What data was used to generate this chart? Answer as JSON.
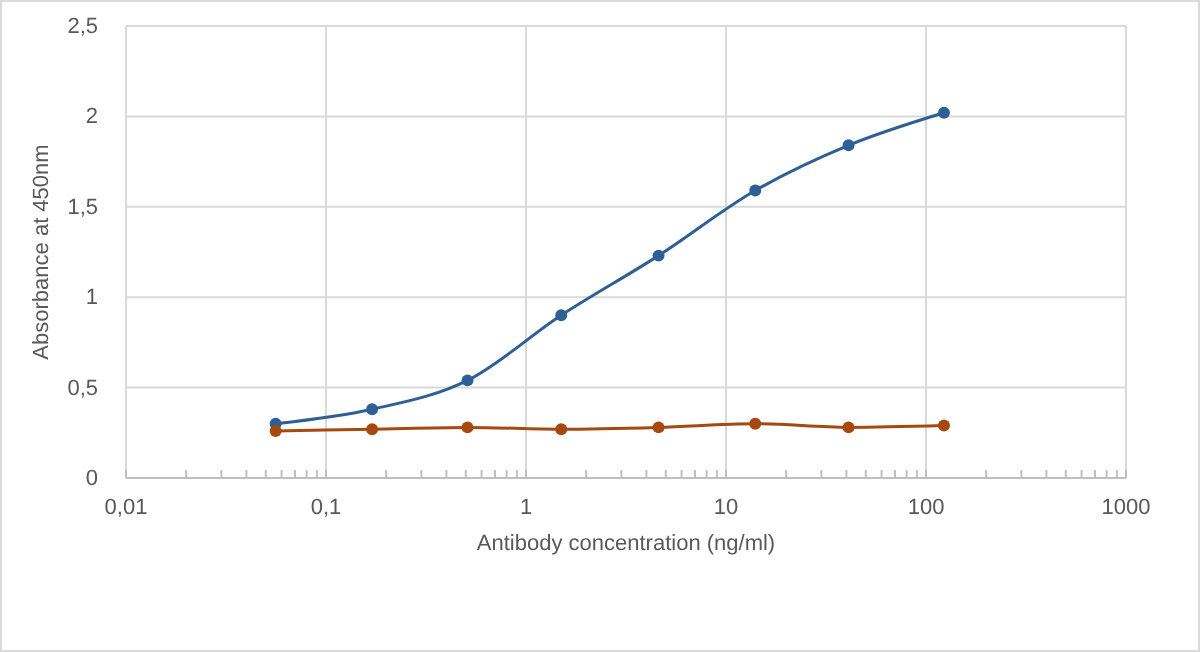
{
  "chart_data": {
    "type": "line",
    "xlabel": "Antibody concentration (ng/ml)",
    "ylabel": "Absorbance at 450nm",
    "log": "x",
    "grid": true,
    "marker": "circle",
    "line_style": "solid",
    "x": [
      0.056,
      0.17,
      0.51,
      1.5,
      4.6,
      14,
      41,
      123
    ],
    "series": [
      {
        "color": "#2e6096",
        "values": [
          0.3,
          0.38,
          0.54,
          0.9,
          1.23,
          1.59,
          1.84,
          2.02
        ]
      },
      {
        "color": "#a5490f",
        "values": [
          0.26,
          0.27,
          0.28,
          0.27,
          0.28,
          0.3,
          0.28,
          0.29
        ]
      }
    ],
    "xlim": [
      0.01,
      1000
    ],
    "xticks": [
      {
        "value": 0.01,
        "label": "0,01"
      },
      {
        "value": 0.02,
        "label": null
      },
      {
        "value": 0.03,
        "label": null
      },
      {
        "value": 0.04,
        "label": null
      },
      {
        "value": 0.05,
        "label": null
      },
      {
        "value": 0.06,
        "label": null
      },
      {
        "value": 0.07,
        "label": null
      },
      {
        "value": 0.08,
        "label": null
      },
      {
        "value": 0.09,
        "label": null
      },
      {
        "value": 0.1,
        "label": "0,1"
      },
      {
        "value": 0.2,
        "label": null
      },
      {
        "value": 0.3,
        "label": null
      },
      {
        "value": 0.4,
        "label": null
      },
      {
        "value": 0.5,
        "label": null
      },
      {
        "value": 0.6,
        "label": null
      },
      {
        "value": 0.7,
        "label": null
      },
      {
        "value": 0.8,
        "label": null
      },
      {
        "value": 0.9,
        "label": null
      },
      1,
      {
        "value": 2,
        "label": null
      },
      {
        "value": 3,
        "label": null
      },
      {
        "value": 4,
        "label": null
      },
      {
        "value": 5,
        "label": null
      },
      {
        "value": 6,
        "label": null
      },
      {
        "value": 7,
        "label": null
      },
      {
        "value": 8,
        "label": null
      },
      {
        "value": 9,
        "label": null
      },
      10,
      {
        "value": 20,
        "label": null
      },
      {
        "value": 30,
        "label": null
      },
      {
        "value": 40,
        "label": null
      },
      {
        "value": 50,
        "label": null
      },
      {
        "value": 60,
        "label": null
      },
      {
        "value": 70,
        "label": null
      },
      {
        "value": 80,
        "label": null
      },
      {
        "value": 90,
        "label": null
      },
      100,
      {
        "value": 200,
        "label": null
      },
      {
        "value": 300,
        "label": null
      },
      {
        "value": 400,
        "label": null
      },
      {
        "value": 500,
        "label": null
      },
      {
        "value": 600,
        "label": null
      },
      {
        "value": 700,
        "label": null
      },
      {
        "value": 800,
        "label": null
      },
      {
        "value": 900,
        "label": null
      },
      1000
    ],
    "ylim": [
      0,
      2.5
    ],
    "yticks": [
      0,
      {
        "value": 0.5,
        "label": "0,5"
      },
      1,
      {
        "value": 1.5,
        "label": "1,5"
      },
      2,
      {
        "value": 2.5,
        "label": "2,5"
      }
    ]
  }
}
